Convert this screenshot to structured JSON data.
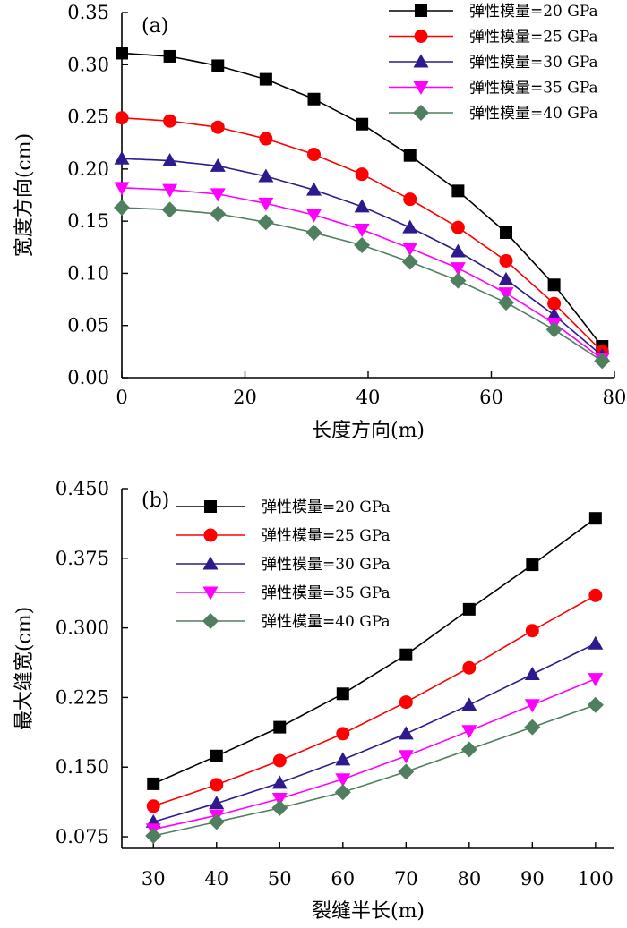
{
  "chart_data": [
    {
      "panel": "(a)",
      "type": "line",
      "xlabel": "长度方向(m)",
      "ylabel": "宽度方向(cm)",
      "xlim": [
        0,
        80
      ],
      "ylim": [
        0,
        0.35
      ],
      "xticks": [
        0,
        20,
        40,
        60,
        80
      ],
      "xtick_labels": [
        "0",
        "20",
        "40",
        "60",
        "80"
      ],
      "yticks": [
        0,
        0.05,
        0.1,
        0.15,
        0.2,
        0.25,
        0.3,
        0.35
      ],
      "ytick_labels": [
        "0.00",
        "0.05",
        "0.10",
        "0.15",
        "0.20",
        "0.25",
        "0.30",
        "0.35"
      ],
      "legend_position": "top-right",
      "grid": false,
      "x": [
        0,
        7.8,
        15.6,
        23.4,
        31.2,
        39,
        46.8,
        54.6,
        62.4,
        70.2,
        78
      ],
      "series": [
        {
          "name": "弹性模量=20 GPa",
          "color": "#000000",
          "marker": "square",
          "values": [
            0.311,
            0.308,
            0.299,
            0.286,
            0.267,
            0.243,
            0.213,
            0.179,
            0.139,
            0.089,
            0.03
          ]
        },
        {
          "name": "弹性模量=25 GPa",
          "color": "#ff0000",
          "marker": "circle",
          "values": [
            0.249,
            0.246,
            0.24,
            0.229,
            0.214,
            0.195,
            0.171,
            0.144,
            0.112,
            0.071,
            0.025
          ]
        },
        {
          "name": "弹性模量=30 GPa",
          "color": "#2e1a8c",
          "marker": "triangle-up",
          "values": [
            0.21,
            0.208,
            0.203,
            0.193,
            0.18,
            0.164,
            0.144,
            0.121,
            0.094,
            0.06,
            0.021
          ]
        },
        {
          "name": "弹性模量=35 GPa",
          "color": "#ff00ff",
          "marker": "triangle-down",
          "values": [
            0.182,
            0.18,
            0.176,
            0.167,
            0.156,
            0.142,
            0.124,
            0.105,
            0.081,
            0.052,
            0.018
          ]
        },
        {
          "name": "弹性模量=40 GPa",
          "color": "#4f7f5f",
          "marker": "diamond",
          "values": [
            0.163,
            0.161,
            0.157,
            0.149,
            0.139,
            0.127,
            0.111,
            0.093,
            0.072,
            0.046,
            0.016
          ]
        }
      ]
    },
    {
      "panel": "(b)",
      "type": "line",
      "xlabel": "裂缝半长(m)",
      "ylabel": "最大缝宽(cm)",
      "xlim": [
        25,
        103
      ],
      "ylim": [
        0.0625,
        0.45
      ],
      "xticks": [
        30,
        40,
        50,
        60,
        70,
        80,
        90,
        100
      ],
      "xtick_labels": [
        "30",
        "40",
        "50",
        "60",
        "70",
        "80",
        "90",
        "100"
      ],
      "yticks": [
        0.075,
        0.15,
        0.225,
        0.3,
        0.375,
        0.45
      ],
      "ytick_labels": [
        "0.075",
        "0.150",
        "0.225",
        "0.300",
        "0.375",
        "0.450"
      ],
      "legend_position": "top-left",
      "grid": false,
      "x": [
        30,
        40,
        50,
        60,
        70,
        80,
        90,
        100
      ],
      "series": [
        {
          "name": "弹性模量=20 GPa",
          "color": "#000000",
          "marker": "square",
          "values": [
            0.132,
            0.162,
            0.193,
            0.229,
            0.271,
            0.32,
            0.368,
            0.418
          ]
        },
        {
          "name": "弹性模量=25 GPa",
          "color": "#ff0000",
          "marker": "circle",
          "values": [
            0.108,
            0.131,
            0.157,
            0.186,
            0.22,
            0.257,
            0.297,
            0.335
          ]
        },
        {
          "name": "弹性模量=30 GPa",
          "color": "#2e1a8c",
          "marker": "triangle-up",
          "values": [
            0.091,
            0.111,
            0.133,
            0.158,
            0.186,
            0.217,
            0.25,
            0.283
          ]
        },
        {
          "name": "弹性模量=35 GPa",
          "color": "#ff00ff",
          "marker": "triangle-down",
          "values": [
            0.083,
            0.098,
            0.116,
            0.137,
            0.162,
            0.189,
            0.217,
            0.245
          ]
        },
        {
          "name": "弹性模量=40 GPa",
          "color": "#4f7f5f",
          "marker": "diamond",
          "values": [
            0.076,
            0.091,
            0.106,
            0.123,
            0.145,
            0.169,
            0.193,
            0.217
          ]
        }
      ]
    }
  ]
}
